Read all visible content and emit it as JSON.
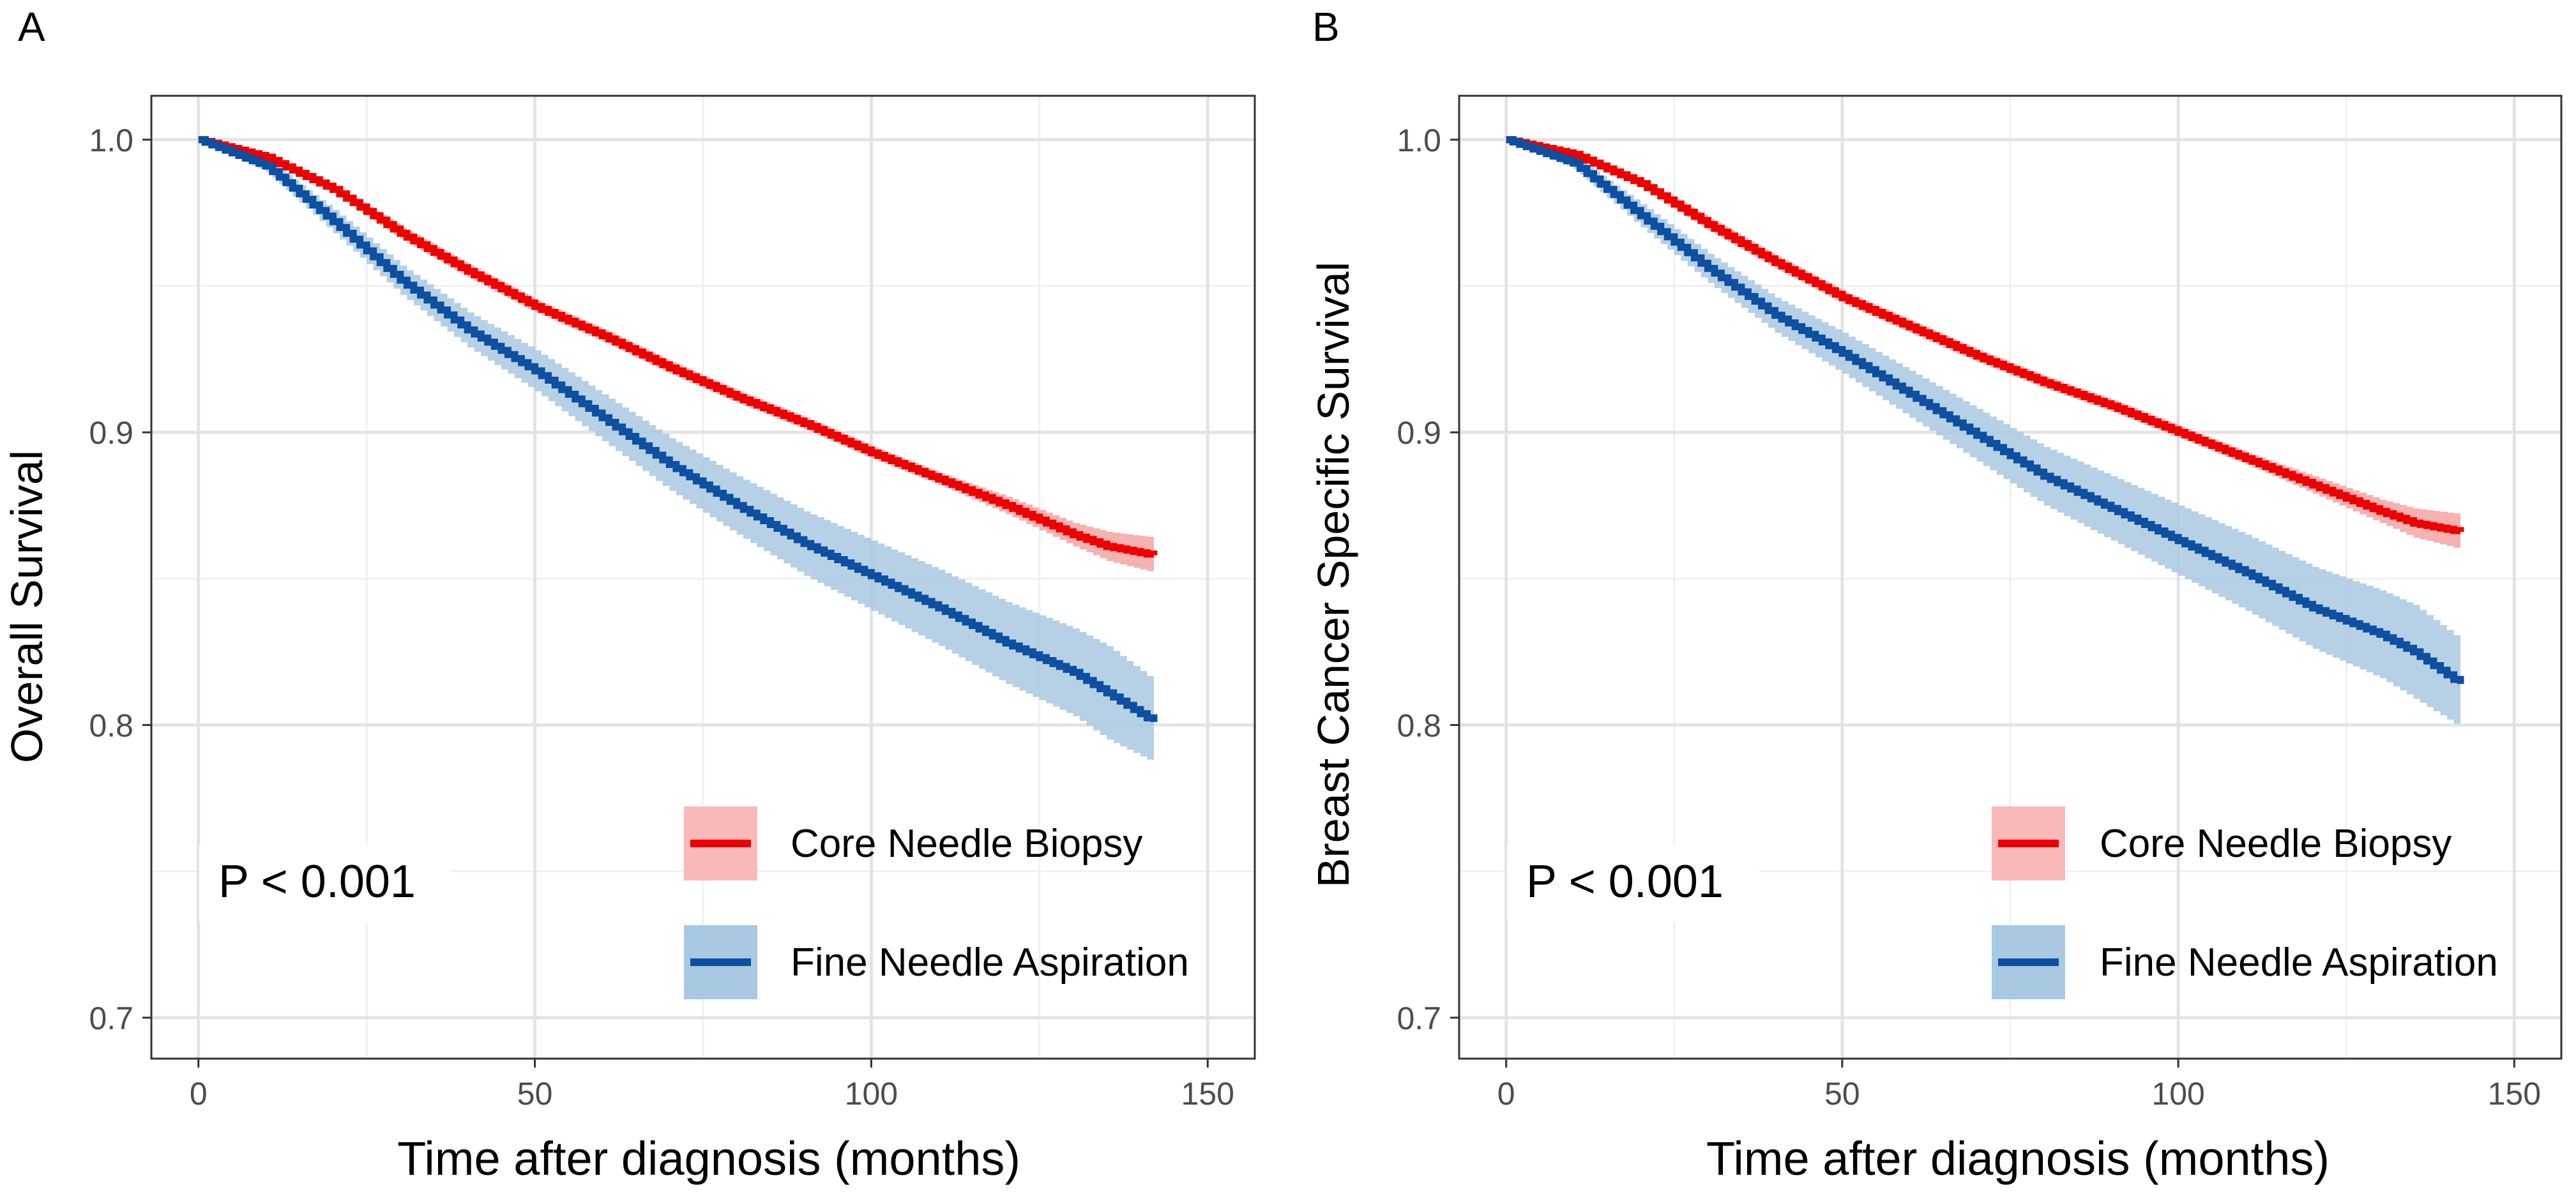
{
  "chart_data": [
    {
      "panel_label": "A",
      "type": "line",
      "title": "",
      "xlabel": "Time after diagnosis (months)",
      "ylabel": "Overall Survival",
      "xlim": [
        -7,
        157
      ],
      "ylim": [
        0.686,
        1.015
      ],
      "x_ticks": [
        0,
        50,
        100,
        150
      ],
      "x_tick_labels": [
        "0",
        "50",
        "100",
        "150"
      ],
      "y_ticks": [
        0.7,
        0.8,
        0.9,
        1.0
      ],
      "y_tick_labels": [
        "0.7",
        "0.8",
        "0.9",
        "1.0"
      ],
      "grid": true,
      "annotation": "P < 0.001",
      "legend_position": "bottom-right",
      "series": [
        {
          "name": "Core Needle Biopsy",
          "color": "#ee0000",
          "band_color": "#f4a3a3",
          "x": [
            0,
            10,
            20,
            30,
            40,
            50,
            60,
            70,
            80,
            90,
            100,
            110,
            120,
            130,
            135,
            142
          ],
          "y": [
            1.0,
            0.994,
            0.983,
            0.968,
            0.955,
            0.943,
            0.933,
            0.922,
            0.912,
            0.903,
            0.893,
            0.884,
            0.875,
            0.865,
            0.861,
            0.858
          ],
          "ci_lower": [
            1.0,
            0.993,
            0.982,
            0.966,
            0.953,
            0.941,
            0.931,
            0.92,
            0.91,
            0.901,
            0.891,
            0.882,
            0.872,
            0.861,
            0.856,
            0.852
          ],
          "ci_upper": [
            1.0,
            0.995,
            0.984,
            0.97,
            0.957,
            0.945,
            0.935,
            0.924,
            0.914,
            0.905,
            0.895,
            0.886,
            0.878,
            0.869,
            0.866,
            0.864
          ]
        },
        {
          "name": "Fine Needle Aspiration",
          "color": "#0d4fa0",
          "band_color": "#a9c8e2",
          "x": [
            0,
            10,
            20,
            30,
            40,
            50,
            60,
            70,
            80,
            90,
            100,
            110,
            120,
            130,
            135,
            142
          ],
          "y": [
            1.0,
            0.991,
            0.972,
            0.952,
            0.935,
            0.921,
            0.905,
            0.889,
            0.875,
            0.862,
            0.851,
            0.84,
            0.828,
            0.818,
            0.811,
            0.801
          ],
          "ci_lower": [
            1.0,
            0.989,
            0.968,
            0.947,
            0.929,
            0.914,
            0.897,
            0.88,
            0.865,
            0.851,
            0.839,
            0.827,
            0.814,
            0.803,
            0.795,
            0.787
          ],
          "ci_upper": [
            1.0,
            0.993,
            0.976,
            0.957,
            0.941,
            0.928,
            0.913,
            0.898,
            0.885,
            0.873,
            0.863,
            0.853,
            0.842,
            0.833,
            0.827,
            0.815
          ]
        }
      ]
    },
    {
      "panel_label": "B",
      "type": "line",
      "title": "",
      "xlabel": "Time after diagnosis (months)",
      "ylabel": "Breast Cancer Specific  Survival",
      "xlim": [
        -7,
        157
      ],
      "ylim": [
        0.686,
        1.015
      ],
      "x_ticks": [
        0,
        50,
        100,
        150
      ],
      "x_tick_labels": [
        "0",
        "50",
        "100",
        "150"
      ],
      "y_ticks": [
        0.7,
        0.8,
        0.9,
        1.0
      ],
      "y_tick_labels": [
        "0.7",
        "0.8",
        "0.9",
        "1.0"
      ],
      "grid": true,
      "annotation": "P < 0.001",
      "legend_position": "bottom-right",
      "series": [
        {
          "name": "Core Needle Biopsy",
          "color": "#ee0000",
          "band_color": "#f4a3a3",
          "x": [
            0,
            10,
            20,
            30,
            40,
            50,
            60,
            70,
            80,
            90,
            100,
            110,
            120,
            130,
            135,
            142
          ],
          "y": [
            1.0,
            0.995,
            0.985,
            0.971,
            0.958,
            0.946,
            0.936,
            0.926,
            0.917,
            0.909,
            0.9,
            0.891,
            0.882,
            0.873,
            0.869,
            0.866
          ],
          "ci_lower": [
            1.0,
            0.994,
            0.984,
            0.969,
            0.956,
            0.944,
            0.934,
            0.924,
            0.915,
            0.907,
            0.898,
            0.889,
            0.879,
            0.869,
            0.864,
            0.86
          ],
          "ci_upper": [
            1.0,
            0.996,
            0.986,
            0.973,
            0.96,
            0.948,
            0.938,
            0.928,
            0.919,
            0.911,
            0.902,
            0.893,
            0.885,
            0.877,
            0.874,
            0.872
          ]
        },
        {
          "name": "Fine Needle Aspiration",
          "color": "#0d4fa0",
          "band_color": "#a9c8e2",
          "x": [
            0,
            10,
            20,
            30,
            40,
            50,
            60,
            70,
            80,
            90,
            100,
            110,
            120,
            130,
            135,
            142
          ],
          "y": [
            1.0,
            0.992,
            0.974,
            0.956,
            0.94,
            0.927,
            0.913,
            0.899,
            0.885,
            0.874,
            0.863,
            0.852,
            0.84,
            0.831,
            0.825,
            0.814
          ],
          "ci_lower": [
            1.0,
            0.99,
            0.97,
            0.951,
            0.934,
            0.92,
            0.905,
            0.89,
            0.875,
            0.863,
            0.851,
            0.839,
            0.826,
            0.816,
            0.809,
            0.799
          ],
          "ci_upper": [
            1.0,
            0.994,
            0.978,
            0.961,
            0.946,
            0.934,
            0.921,
            0.908,
            0.895,
            0.885,
            0.875,
            0.865,
            0.854,
            0.846,
            0.841,
            0.829
          ]
        }
      ]
    }
  ]
}
